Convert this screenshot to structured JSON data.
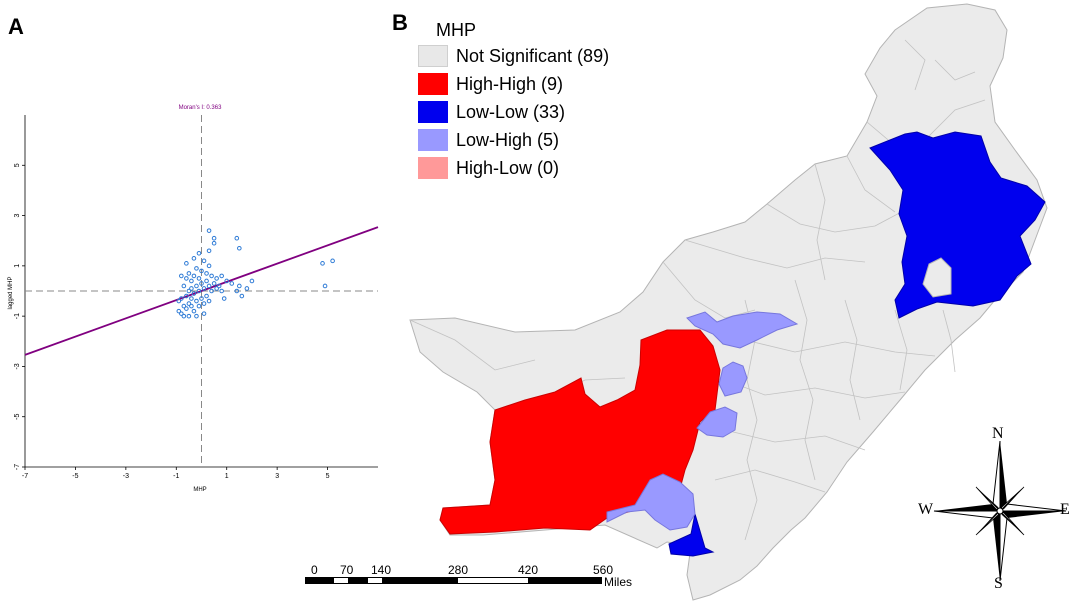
{
  "panel_a": {
    "letter": "A",
    "moran_label": "Moran's I: 0.363",
    "xlabel": "MHP",
    "ylabel": "lagged MHP",
    "x_ticks": [
      "-7",
      "-5",
      "-3",
      "-1",
      "1",
      "3",
      "5"
    ],
    "y_ticks": [
      "5",
      "3",
      "1",
      "-1",
      "-3",
      "-5",
      "-7"
    ]
  },
  "chart_data": {
    "type": "scatter",
    "title": "Moran's I: 0.363",
    "xlabel": "MHP",
    "ylabel": "lagged MHP",
    "xlim": [
      -7,
      7
    ],
    "ylim": [
      -7,
      7
    ],
    "regression": {
      "slope": 0.363,
      "intercept": 0.0
    },
    "point_color": "#2e7bd6",
    "line_color": "#800080",
    "points": [
      [
        -0.9,
        -0.8
      ],
      [
        -0.8,
        -0.9
      ],
      [
        -0.7,
        -0.6
      ],
      [
        -0.6,
        -0.7
      ],
      [
        -0.5,
        -0.5
      ],
      [
        -0.4,
        -0.6
      ],
      [
        -0.3,
        -0.8
      ],
      [
        -0.2,
        -0.4
      ],
      [
        -0.1,
        -0.6
      ],
      [
        0.0,
        -0.3
      ],
      [
        0.1,
        -0.5
      ],
      [
        0.2,
        -0.2
      ],
      [
        -0.8,
        -0.3
      ],
      [
        -0.6,
        -0.2
      ],
      [
        -0.5,
        0.0
      ],
      [
        -0.4,
        0.1
      ],
      [
        -0.3,
        -0.1
      ],
      [
        -0.2,
        0.2
      ],
      [
        -0.1,
        0.0
      ],
      [
        0.0,
        0.3
      ],
      [
        0.1,
        0.1
      ],
      [
        0.2,
        0.4
      ],
      [
        0.3,
        0.2
      ],
      [
        0.4,
        0.0
      ],
      [
        0.5,
        0.3
      ],
      [
        0.6,
        0.5
      ],
      [
        0.7,
        0.2
      ],
      [
        0.8,
        0.6
      ],
      [
        -0.9,
        -0.4
      ],
      [
        -0.7,
        0.2
      ],
      [
        -0.6,
        0.5
      ],
      [
        -0.5,
        0.7
      ],
      [
        -0.4,
        0.4
      ],
      [
        -0.3,
        0.6
      ],
      [
        -0.2,
        0.9
      ],
      [
        -0.1,
        0.5
      ],
      [
        0.0,
        0.8
      ],
      [
        0.2,
        0.7
      ],
      [
        0.3,
        1.0
      ],
      [
        0.4,
        0.6
      ],
      [
        -0.6,
        1.1
      ],
      [
        -0.3,
        1.3
      ],
      [
        -0.1,
        1.5
      ],
      [
        0.1,
        1.2
      ],
      [
        0.3,
        1.6
      ],
      [
        0.3,
        2.4
      ],
      [
        0.5,
        2.1
      ],
      [
        0.5,
        1.9
      ],
      [
        1.4,
        2.1
      ],
      [
        1.5,
        1.7
      ],
      [
        -0.2,
        -1.0
      ],
      [
        -0.5,
        -1.0
      ],
      [
        0.1,
        -0.9
      ],
      [
        -0.7,
        -1.0
      ],
      [
        0.3,
        -0.4
      ],
      [
        0.6,
        0.1
      ],
      [
        0.8,
        0.0
      ],
      [
        1.0,
        0.4
      ],
      [
        1.2,
        0.3
      ],
      [
        1.4,
        0.0
      ],
      [
        1.5,
        0.2
      ],
      [
        1.6,
        -0.2
      ],
      [
        1.8,
        0.1
      ],
      [
        2.0,
        0.4
      ],
      [
        0.9,
        -0.3
      ],
      [
        4.8,
        1.1
      ],
      [
        4.9,
        0.2
      ],
      [
        5.2,
        1.2
      ],
      [
        -0.8,
        0.6
      ],
      [
        -0.4,
        -0.3
      ]
    ]
  },
  "panel_b": {
    "letter": "B",
    "legend_title": "MHP",
    "legend": [
      {
        "label": "Not Significant (89)",
        "color": "#e8e8e8"
      },
      {
        "label": "High-High (9)",
        "color": "#ff0000"
      },
      {
        "label": "Low-Low (33)",
        "color": "#0000ee"
      },
      {
        "label": "Low-High (5)",
        "color": "#9999ff"
      },
      {
        "label": "High-Low (0)",
        "color": "#ff9999"
      }
    ],
    "scale_numbers": [
      "0",
      "70",
      "140",
      "280",
      "420",
      "560"
    ],
    "scale_unit": "Miles",
    "compass": {
      "n": "N",
      "s": "S",
      "e": "E",
      "w": "W"
    }
  }
}
